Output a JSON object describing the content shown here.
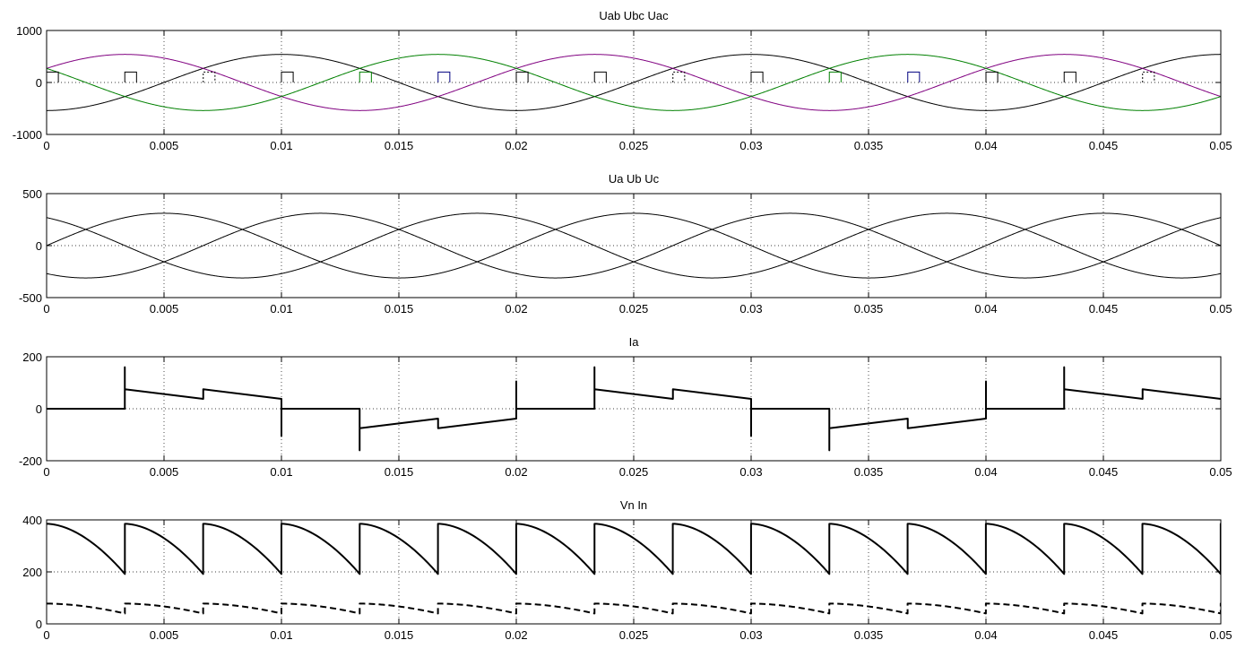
{
  "chart_data": [
    {
      "type": "line",
      "title": "Uab Ubc Uac",
      "xlim": [
        0,
        0.05
      ],
      "ylim": [
        -1000,
        1000
      ],
      "x_ticks": [
        0,
        0.005,
        0.01,
        0.015,
        0.02,
        0.025,
        0.03,
        0.035,
        0.04,
        0.045,
        0.05
      ],
      "x_tick_labels": [
        "0",
        "0.005",
        "0.01",
        "0.015",
        "0.02",
        "0.025",
        "0.03",
        "0.035",
        "0.04",
        "0.045",
        "0.05"
      ],
      "y_ticks": [
        -1000,
        0,
        1000
      ],
      "y_tick_labels": [
        "-1000",
        "0",
        "1000"
      ],
      "grid": true,
      "series": [
        {
          "color": "#000000",
          "style": "solid",
          "form": "sine",
          "amplitude": 540,
          "phase_deg": -90
        },
        {
          "color": "#800080",
          "style": "solid",
          "form": "sine",
          "amplitude": 540,
          "phase_deg": 30
        },
        {
          "color": "#008000",
          "style": "solid",
          "form": "sine",
          "amplitude": 540,
          "phase_deg": 150
        }
      ],
      "pulses": {
        "height": 200,
        "width_s": 0.0005,
        "items": [
          {
            "t": 0.0,
            "color": "#000000",
            "style": "solid"
          },
          {
            "t": 0.00333,
            "color": "#000000",
            "style": "solid"
          },
          {
            "t": 0.00667,
            "color": "#000000",
            "style": "dotted"
          },
          {
            "t": 0.01,
            "color": "#000000",
            "style": "solid"
          },
          {
            "t": 0.01333,
            "color": "#008000",
            "style": "solid"
          },
          {
            "t": 0.01667,
            "color": "#000080",
            "style": "solid"
          },
          {
            "t": 0.02,
            "color": "#000000",
            "style": "solid"
          },
          {
            "t": 0.02333,
            "color": "#000000",
            "style": "solid"
          },
          {
            "t": 0.02667,
            "color": "#000000",
            "style": "dotted"
          },
          {
            "t": 0.03,
            "color": "#000000",
            "style": "solid"
          },
          {
            "t": 0.03333,
            "color": "#008000",
            "style": "solid"
          },
          {
            "t": 0.03667,
            "color": "#000080",
            "style": "solid"
          },
          {
            "t": 0.04,
            "color": "#000000",
            "style": "solid"
          },
          {
            "t": 0.04333,
            "color": "#000000",
            "style": "solid"
          },
          {
            "t": 0.04667,
            "color": "#000000",
            "style": "dotted"
          }
        ]
      }
    },
    {
      "type": "line",
      "title": "Ua Ub Uc",
      "xlim": [
        0,
        0.05
      ],
      "ylim": [
        -500,
        500
      ],
      "x_ticks": [
        0,
        0.005,
        0.01,
        0.015,
        0.02,
        0.025,
        0.03,
        0.035,
        0.04,
        0.045,
        0.05
      ],
      "x_tick_labels": [
        "0",
        "0.005",
        "0.01",
        "0.015",
        "0.02",
        "0.025",
        "0.03",
        "0.035",
        "0.04",
        "0.045",
        "0.05"
      ],
      "y_ticks": [
        -500,
        0,
        500
      ],
      "y_tick_labels": [
        "-500",
        "0",
        "500"
      ],
      "grid": true,
      "series": [
        {
          "color": "#000000",
          "style": "solid",
          "form": "sine",
          "amplitude": 311,
          "phase_deg": 0
        },
        {
          "color": "#000000",
          "style": "solid",
          "form": "sine",
          "amplitude": 311,
          "phase_deg": -120
        },
        {
          "color": "#000000",
          "style": "solid",
          "form": "sine",
          "amplitude": 311,
          "phase_deg": 120
        }
      ]
    },
    {
      "type": "line",
      "title": "Ia",
      "xlim": [
        0,
        0.05
      ],
      "ylim": [
        -200,
        200
      ],
      "x_ticks": [
        0,
        0.005,
        0.01,
        0.015,
        0.02,
        0.025,
        0.03,
        0.035,
        0.04,
        0.045,
        0.05
      ],
      "x_tick_labels": [
        "0",
        "0.005",
        "0.01",
        "0.015",
        "0.02",
        "0.025",
        "0.03",
        "0.035",
        "0.04",
        "0.045",
        "0.05"
      ],
      "y_ticks": [
        -200,
        0,
        200
      ],
      "y_tick_labels": [
        "-200",
        "0",
        "200"
      ],
      "grid": true,
      "series": [
        {
          "color": "#000000",
          "style": "solid",
          "width": 2,
          "points": [
            [
              0,
              0
            ],
            [
              0.00333,
              0
            ],
            [
              0.00333,
              160
            ],
            [
              0.00333,
              75
            ],
            [
              0.00667,
              38
            ],
            [
              0.00667,
              75
            ],
            [
              0.01,
              38
            ],
            [
              0.01,
              -105
            ],
            [
              0.01,
              0
            ],
            [
              0.01333,
              0
            ],
            [
              0.01333,
              -160
            ],
            [
              0.01333,
              -75
            ],
            [
              0.01667,
              -38
            ],
            [
              0.01667,
              -75
            ],
            [
              0.02,
              -38
            ],
            [
              0.02,
              105
            ],
            [
              0.02,
              0
            ],
            [
              0.02333,
              0
            ],
            [
              0.02333,
              160
            ],
            [
              0.02333,
              75
            ],
            [
              0.02667,
              38
            ],
            [
              0.02667,
              75
            ],
            [
              0.03,
              38
            ],
            [
              0.03,
              -105
            ],
            [
              0.03,
              0
            ],
            [
              0.03333,
              0
            ],
            [
              0.03333,
              -160
            ],
            [
              0.03333,
              -75
            ],
            [
              0.03667,
              -38
            ],
            [
              0.03667,
              -75
            ],
            [
              0.04,
              -38
            ],
            [
              0.04,
              105
            ],
            [
              0.04,
              0
            ],
            [
              0.04333,
              0
            ],
            [
              0.04333,
              160
            ],
            [
              0.04333,
              75
            ],
            [
              0.04667,
              38
            ],
            [
              0.04667,
              75
            ],
            [
              0.05,
              38
            ]
          ]
        }
      ]
    },
    {
      "type": "line",
      "title": "Vn In",
      "xlim": [
        0,
        0.05
      ],
      "ylim": [
        0,
        400
      ],
      "x_ticks": [
        0,
        0.005,
        0.01,
        0.015,
        0.02,
        0.025,
        0.03,
        0.035,
        0.04,
        0.045,
        0.05
      ],
      "x_tick_labels": [
        "0",
        "0.005",
        "0.01",
        "0.015",
        "0.02",
        "0.025",
        "0.03",
        "0.035",
        "0.04",
        "0.045",
        "0.05"
      ],
      "y_ticks": [
        0,
        200,
        400
      ],
      "y_tick_labels": [
        "0",
        "200",
        "400"
      ],
      "grid": true,
      "series": [
        {
          "color": "#000000",
          "style": "solid",
          "width": 2,
          "form": "sawtooth",
          "peak": 385,
          "trough": 192,
          "period_s": 0.003333
        },
        {
          "color": "#000000",
          "style": "dashed",
          "width": 2,
          "form": "sawtooth",
          "peak": 78,
          "trough": 40,
          "period_s": 0.003333
        }
      ]
    }
  ]
}
